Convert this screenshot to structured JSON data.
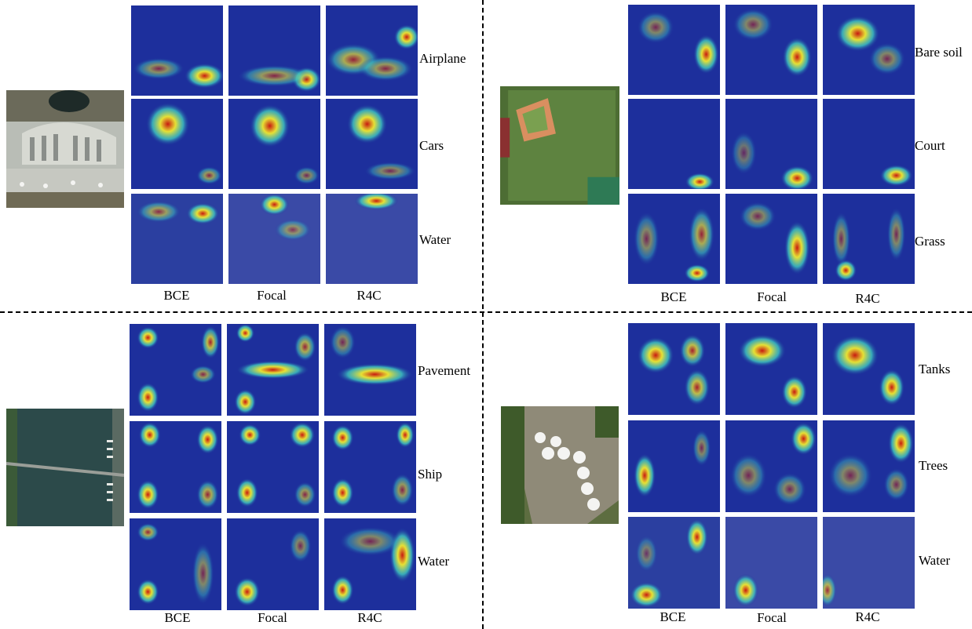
{
  "panels": [
    {
      "id": "airport",
      "rows": [
        "Airplane",
        "Cars",
        "Water"
      ],
      "columns": [
        "BCE",
        "Focal",
        "R4C"
      ]
    },
    {
      "id": "baseball",
      "rows": [
        "Bare soil",
        "Court",
        "Grass"
      ],
      "columns": [
        "BCE",
        "Focal",
        "R4C"
      ]
    },
    {
      "id": "bridge",
      "rows": [
        "Pavement",
        "Ship",
        "Water"
      ],
      "columns": [
        "BCE",
        "Focal",
        "R4C"
      ]
    },
    {
      "id": "tanks",
      "rows": [
        "Tanks",
        "Trees",
        "Water"
      ],
      "columns": [
        "BCE",
        "Focal",
        "R4C"
      ]
    }
  ],
  "heatmap_colors": {
    "low": "#1a2a9a",
    "mid": "#3fc9c0",
    "high": "#e6e035",
    "peak": "#c81a10"
  }
}
